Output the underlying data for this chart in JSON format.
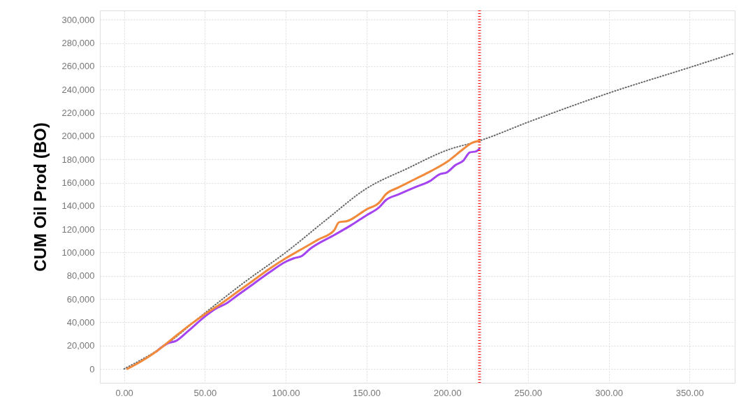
{
  "chart_data": {
    "type": "line",
    "ylabel": "CUM Oil Prod (BO)",
    "xlim": [
      -15,
      378
    ],
    "ylim": [
      -12000,
      308000
    ],
    "xticks": [
      {
        "value": 0,
        "label": "0.00"
      },
      {
        "value": 50,
        "label": "50.00"
      },
      {
        "value": 100,
        "label": "100.00"
      },
      {
        "value": 150,
        "label": "150.00"
      },
      {
        "value": 200,
        "label": "200.00"
      },
      {
        "value": 250,
        "label": "250.00"
      },
      {
        "value": 300,
        "label": "300.00"
      },
      {
        "value": 350,
        "label": "350.00"
      }
    ],
    "yticks": [
      0,
      {
        "value": 20000,
        "label": "20,000"
      },
      {
        "value": 40000,
        "label": "40,000"
      },
      {
        "value": 60000,
        "label": "60,000"
      },
      {
        "value": 80000,
        "label": "80,000"
      },
      {
        "value": 100000,
        "label": "100,000"
      },
      {
        "value": 120000,
        "label": "120,000"
      },
      {
        "value": 140000,
        "label": "140,000"
      },
      {
        "value": 160000,
        "label": "160,000"
      },
      {
        "value": 180000,
        "label": "180,000"
      },
      {
        "value": 200000,
        "label": "200,000"
      },
      {
        "value": 220000,
        "label": "220,000"
      },
      {
        "value": 240000,
        "label": "240,000"
      },
      {
        "value": 260000,
        "label": "260,000"
      },
      {
        "value": 280000,
        "label": "280,000"
      },
      {
        "value": 300000,
        "label": "300,000"
      }
    ],
    "grid": true,
    "series": [
      {
        "color": "#f28a3c",
        "line_style": "solid",
        "x": [
          2,
          10,
          20,
          30,
          40,
          50,
          60,
          70,
          80,
          90,
          100,
          110,
          120,
          130,
          133,
          138,
          150,
          158,
          162,
          170,
          180,
          190,
          200,
          210,
          215,
          220
        ],
        "values": [
          0,
          6000,
          15000,
          26000,
          37000,
          47000,
          56000,
          66000,
          76000,
          86000,
          95000,
          103000,
          111000,
          119000,
          126000,
          127000,
          137000,
          143000,
          150000,
          156000,
          163000,
          170000,
          178000,
          189000,
          194000,
          196000
        ]
      },
      {
        "color": "#a443f0",
        "line_style": "solid",
        "x": [
          20,
          27,
          32,
          40,
          50,
          57,
          63,
          70,
          80,
          90,
          100,
          105,
          110,
          115,
          130,
          140,
          150,
          158,
          162,
          170,
          180,
          190,
          195,
          200,
          205,
          210,
          214,
          218,
          220
        ],
        "values": [
          15000,
          22000,
          24000,
          33000,
          45000,
          52000,
          56000,
          63000,
          73000,
          83000,
          92000,
          95000,
          97000,
          103000,
          115000,
          123000,
          132000,
          139000,
          145000,
          150000,
          156000,
          162000,
          167000,
          169000,
          175000,
          179000,
          186000,
          187000,
          189000
        ]
      },
      {
        "color": "#666666",
        "line_style": "dotted",
        "x": [
          0,
          25,
          50,
          75,
          100,
          125,
          150,
          175,
          200,
          220,
          250,
          300,
          350,
          377
        ],
        "values": [
          0,
          20000,
          48000,
          75000,
          100000,
          128000,
          155000,
          172000,
          188000,
          196000,
          212000,
          237000,
          259000,
          271000
        ]
      }
    ],
    "ref_lines": [
      {
        "axis": "x",
        "value": 220,
        "color": "#ff0000",
        "line_style": "dotted"
      }
    ]
  }
}
